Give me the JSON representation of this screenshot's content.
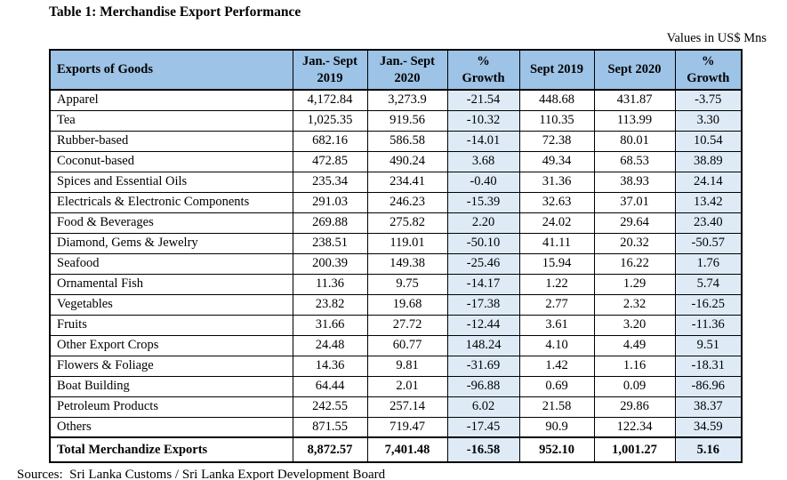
{
  "title": "Table 1: Merchandise Export Performance",
  "unit_note": "Values in US$ Mns",
  "source_note": "Sources:  Sri Lanka Customs / Sri Lanka Export Development Board",
  "colors": {
    "header_bg": "#9DC3E6",
    "growth_bg": "#DEEBF7",
    "border": "#000000"
  },
  "table": {
    "header_lines": [
      [
        "Exports of Goods"
      ],
      [
        "Jan.- Sept",
        "2019"
      ],
      [
        "Jan.- Sept",
        "2020"
      ],
      [
        "%",
        "Growth"
      ],
      [
        "Sept 2019"
      ],
      [
        "Sept 2020"
      ],
      [
        "%",
        "Growth"
      ]
    ],
    "rows": [
      {
        "name": "Apparel",
        "values": [
          "4,172.84",
          "3,273.9",
          "-21.54",
          "448.68",
          "431.87",
          "-3.75"
        ]
      },
      {
        "name": "Tea",
        "values": [
          "1,025.35",
          "919.56",
          "-10.32",
          "110.35",
          "113.99",
          "3.30"
        ]
      },
      {
        "name": "Rubber-based",
        "values": [
          "682.16",
          "586.58",
          "-14.01",
          "72.38",
          "80.01",
          "10.54"
        ]
      },
      {
        "name": "Coconut-based",
        "values": [
          "472.85",
          "490.24",
          "3.68",
          "49.34",
          "68.53",
          "38.89"
        ]
      },
      {
        "name": "Spices and Essential Oils",
        "values": [
          "235.34",
          "234.41",
          "-0.40",
          "31.36",
          "38.93",
          "24.14"
        ]
      },
      {
        "name": "Electricals & Electronic Components",
        "values": [
          "291.03",
          "246.23",
          "-15.39",
          "32.63",
          "37.01",
          "13.42"
        ]
      },
      {
        "name": "Food & Beverages",
        "values": [
          "269.88",
          "275.82",
          "2.20",
          "24.02",
          "29.64",
          "23.40"
        ]
      },
      {
        "name": "Diamond, Gems & Jewelry",
        "values": [
          "238.51",
          "119.01",
          "-50.10",
          "41.11",
          "20.32",
          "-50.57"
        ]
      },
      {
        "name": "Seafood",
        "values": [
          "200.39",
          "149.38",
          "-25.46",
          "15.94",
          "16.22",
          "1.76"
        ]
      },
      {
        "name": "Ornamental Fish",
        "values": [
          "11.36",
          "9.75",
          "-14.17",
          "1.22",
          "1.29",
          "5.74"
        ]
      },
      {
        "name": "Vegetables",
        "values": [
          "23.82",
          "19.68",
          "-17.38",
          "2.77",
          "2.32",
          "-16.25"
        ]
      },
      {
        "name": "Fruits",
        "values": [
          "31.66",
          "27.72",
          "-12.44",
          "3.61",
          "3.20",
          "-11.36"
        ]
      },
      {
        "name": "Other Export Crops",
        "values": [
          "24.48",
          "60.77",
          "148.24",
          "4.10",
          "4.49",
          "9.51"
        ]
      },
      {
        "name": "Flowers & Foliage",
        "values": [
          "14.36",
          "9.81",
          "-31.69",
          "1.42",
          "1.16",
          "-18.31"
        ]
      },
      {
        "name": "Boat Building",
        "values": [
          "64.44",
          "2.01",
          "-96.88",
          "0.69",
          "0.09",
          "-86.96"
        ]
      },
      {
        "name": "Petroleum Products",
        "values": [
          "242.55",
          "257.14",
          "6.02",
          "21.58",
          "29.86",
          "38.37"
        ]
      },
      {
        "name": "Others",
        "values": [
          "871.55",
          "719.47",
          "-17.45",
          "90.9",
          "122.34",
          "34.59"
        ]
      }
    ],
    "total_row": {
      "name": "Total Merchandize Exports",
      "values": [
        "8,872.57",
        "7,401.48",
        "-16.58",
        "952.10",
        "1,001.27",
        "5.16"
      ]
    }
  }
}
